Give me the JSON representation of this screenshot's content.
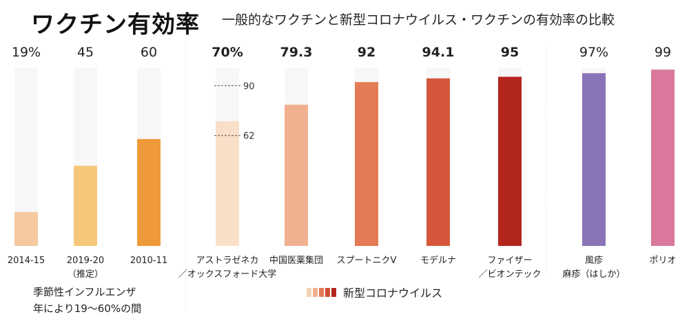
{
  "header": {
    "title": "ワクチン有効率",
    "subtitle": "一般的なワクチンと新型コロナウイルス・ワクチンの有効率の比較"
  },
  "notes": {
    "seasonal_line1": "季節性インフルエンザ",
    "seasonal_line2": "年により19〜60%の間"
  },
  "legend": {
    "label": "新型コロナウイルス",
    "swatches": [
      "#f5d3b8",
      "#f0b08f",
      "#e47a56",
      "#cf4f34",
      "#b3261e"
    ]
  },
  "chart_data": {
    "type": "bar",
    "ylim": [
      0,
      100
    ],
    "categories": [
      "2014-15",
      "2019-20",
      "2010-11",
      "アストラゼネカ",
      "中国医薬集団",
      "スプートニクV",
      "モデルナ",
      "ファイザー",
      "風疹",
      "ポリオ"
    ],
    "category_sublabels": [
      "",
      "（推定）",
      "",
      "／オックスフォード大学",
      "",
      "",
      "",
      "／ビオンテック",
      "麻疹（はしか）",
      ""
    ],
    "values": [
      19,
      45,
      60,
      70,
      79.3,
      92,
      94.1,
      95,
      97,
      99
    ],
    "value_labels": [
      "19%",
      "45",
      "60",
      "70%",
      "79.3",
      "92",
      "94.1",
      "95",
      "97%",
      "99"
    ],
    "value_label_bold": [
      false,
      false,
      false,
      true,
      true,
      true,
      true,
      true,
      false,
      false
    ],
    "colors": [
      "#f4c9a0",
      "#f5c77a",
      "#ef9a3a",
      "#f9dfc8",
      "#f0b08f",
      "#e47a56",
      "#d5573b",
      "#b3261e",
      "#8a74b8",
      "#d9789c"
    ],
    "groups": [
      {
        "name": "季節性インフルエンザ",
        "indices": [
          0,
          1,
          2
        ]
      },
      {
        "name": "新型コロナウイルス",
        "indices": [
          3,
          4,
          5,
          6,
          7
        ]
      },
      {
        "name": "",
        "indices": [
          8,
          9
        ]
      }
    ],
    "annotations": [
      {
        "bar_index": 3,
        "value": 90,
        "label": "90"
      },
      {
        "bar_index": 3,
        "value": 62,
        "label": "62"
      }
    ]
  }
}
